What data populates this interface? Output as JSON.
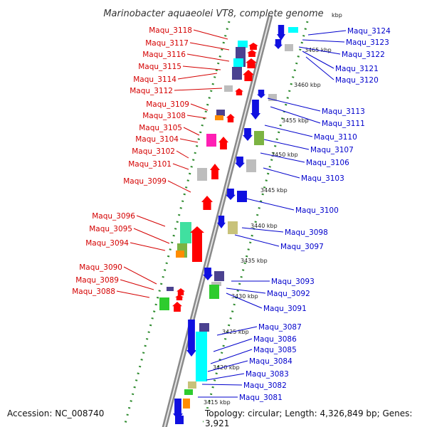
{
  "title": "Marinobacter aquaeolei VT8, complete genome",
  "footer": {
    "accession": "Accession: NC_008740",
    "topology": "Topology: circular; Length: 4,326,849 bp; Genes: 3,921"
  },
  "colors": {
    "left_label": "#d40000",
    "right_label": "#0000cc",
    "backbone": "#9a9a9a",
    "dots": "#2e8b2e"
  },
  "kbp_ticks": [
    {
      "text": "3465 kbp",
      "kbp": 3465
    },
    {
      "text": "3460 kbp",
      "kbp": 3460
    },
    {
      "text": "3455 kbp",
      "kbp": 3455
    },
    {
      "text": "3450 kbp",
      "kbp": 3450
    },
    {
      "text": "3445 kbp",
      "kbp": 3445
    },
    {
      "text": "3440 kbp",
      "kbp": 3440
    },
    {
      "text": "3435 kbp",
      "kbp": 3435
    },
    {
      "text": "3430 kbp",
      "kbp": 3430
    },
    {
      "text": "3425 kbp",
      "kbp": 3425
    },
    {
      "text": "3420 kbp",
      "kbp": 3420
    },
    {
      "text": "3415 kbp",
      "kbp": 3415
    },
    {
      "text": "kbp",
      "kbp": 3470
    }
  ],
  "left_genes": [
    "Maqu_3118",
    "Maqu_3117",
    "Maqu_3116",
    "Maqu_3115",
    "Maqu_3114",
    "Maqu_3112",
    "Maqu_3109",
    "Maqu_3108",
    "Maqu_3105",
    "Maqu_3104",
    "Maqu_3102",
    "Maqu_3101",
    "Maqu_3099",
    "Maqu_3096",
    "Maqu_3095",
    "Maqu_3094",
    "Maqu_3090",
    "Maqu_3089",
    "Maqu_3088"
  ],
  "right_genes": [
    "Maqu_3124",
    "Maqu_3123",
    "Maqu_3122",
    "Maqu_3121",
    "Maqu_3120",
    "Maqu_3113",
    "Maqu_3111",
    "Maqu_3110",
    "Maqu_3107",
    "Maqu_3106",
    "Maqu_3103",
    "Maqu_3100",
    "Maqu_3098",
    "Maqu_3097",
    "Maqu_3093",
    "Maqu_3092",
    "Maqu_3091",
    "Maqu_3087",
    "Maqu_3086",
    "Maqu_3085",
    "Maqu_3084",
    "Maqu_3083",
    "Maqu_3082",
    "Maqu_3081"
  ]
}
